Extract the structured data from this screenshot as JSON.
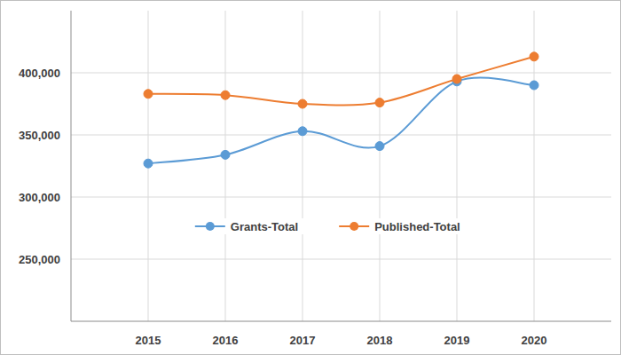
{
  "chart_data": {
    "type": "line",
    "categories": [
      "2015",
      "2016",
      "2017",
      "2018",
      "2019",
      "2020"
    ],
    "series": [
      {
        "name": "Grants-Total",
        "color": "#5b9bd5",
        "marker": "circle",
        "line_style": "smooth",
        "values": [
          327000,
          334000,
          353000,
          341000,
          393000,
          390000
        ]
      },
      {
        "name": "Published-Total",
        "color": "#ed7d31",
        "marker": "circle",
        "line_style": "smooth",
        "values": [
          383000,
          382000,
          375000,
          376000,
          395000,
          413000
        ]
      }
    ],
    "ylim": [
      200000,
      450000
    ],
    "yticks": [
      {
        "value": 250000,
        "label": "250,000"
      },
      {
        "value": 300000,
        "label": "300,000"
      },
      {
        "value": 350000,
        "label": "350,000"
      },
      {
        "value": 400000,
        "label": "400,000"
      }
    ],
    "grid": true,
    "legend": "center"
  }
}
